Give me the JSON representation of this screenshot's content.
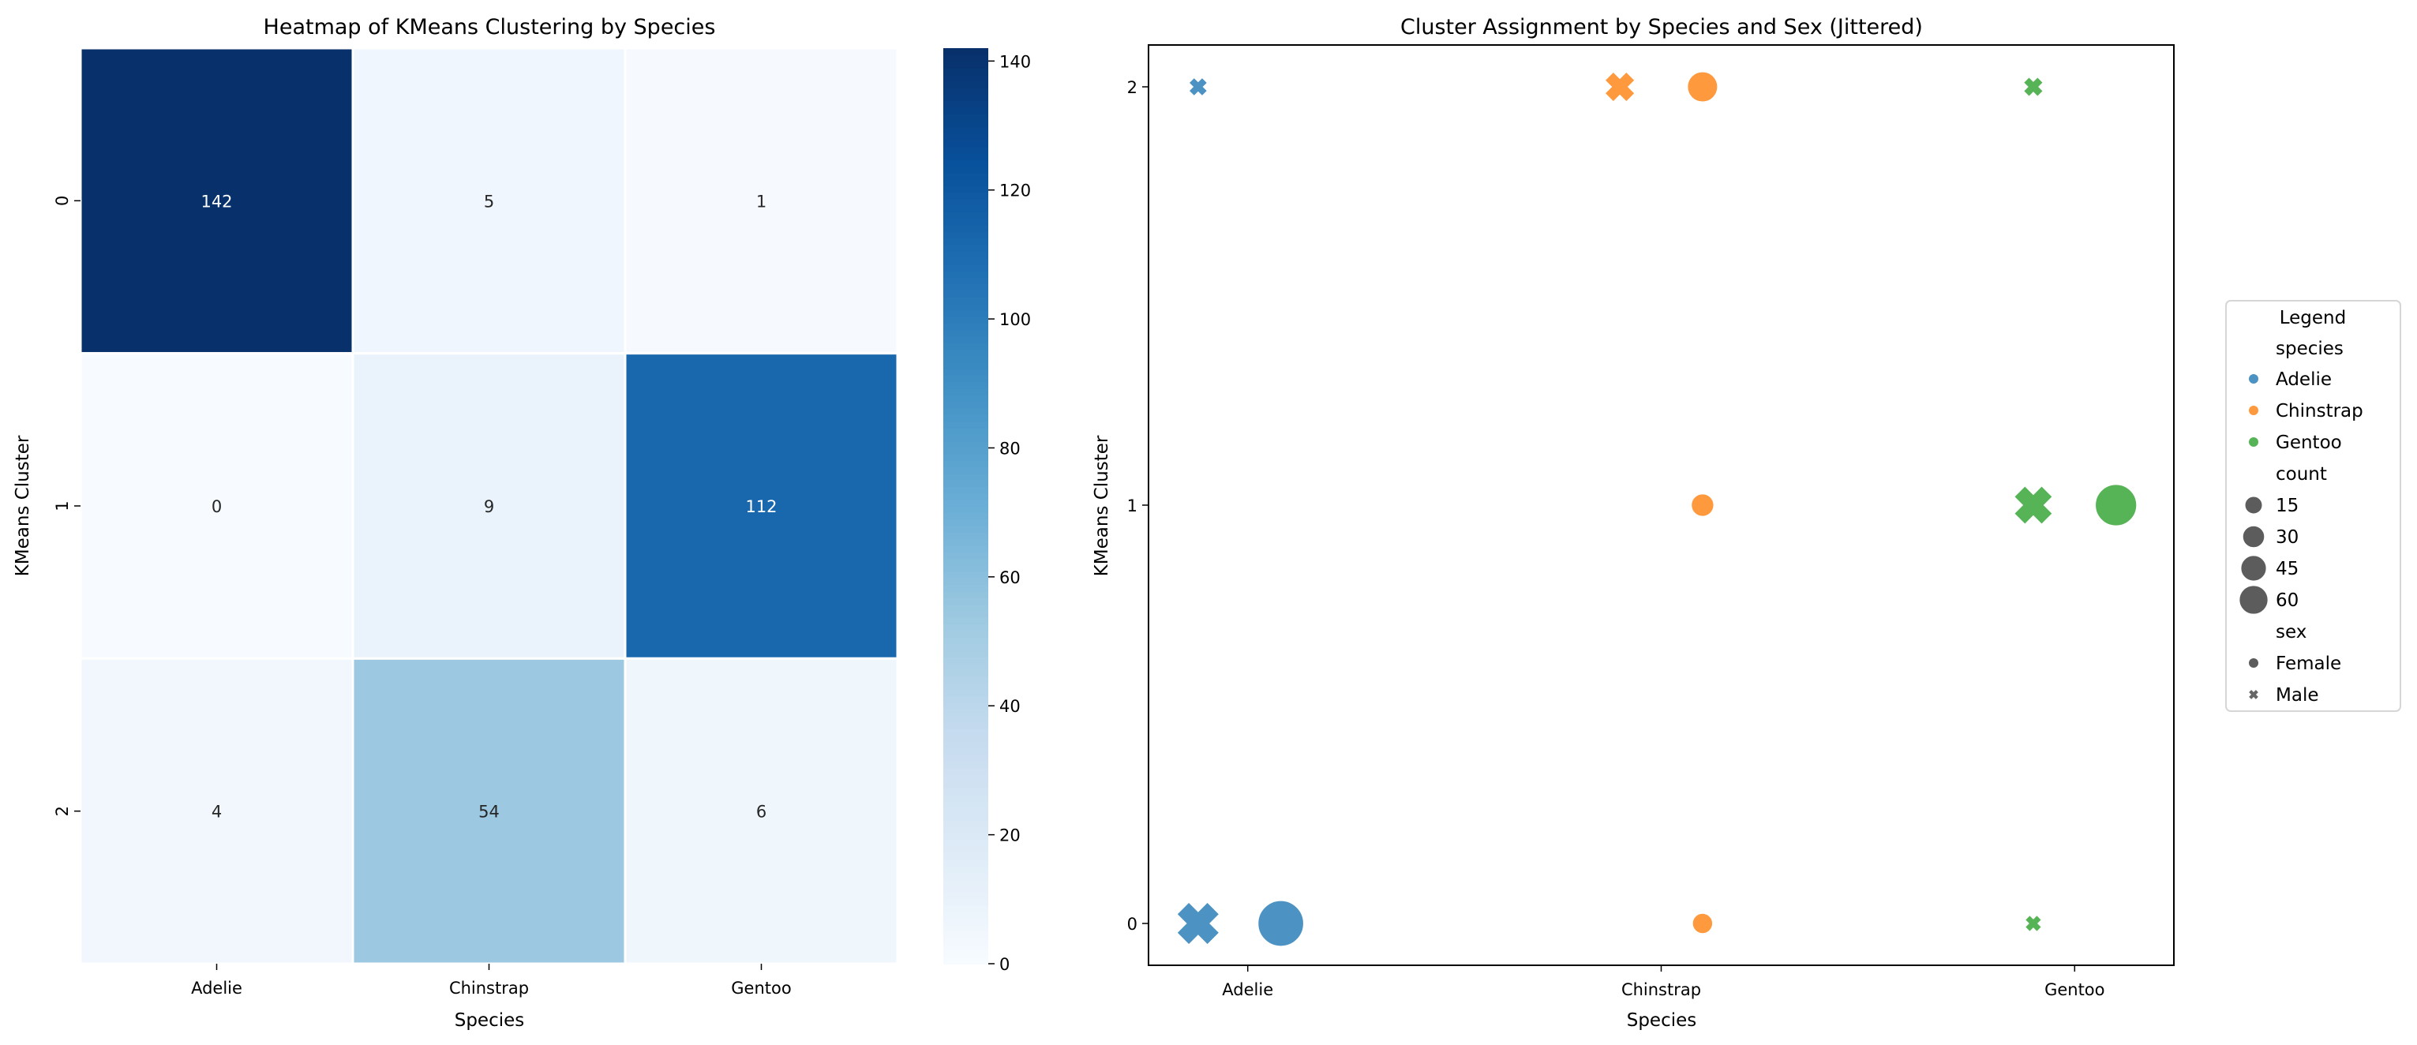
{
  "chart_data": [
    {
      "type": "heatmap",
      "title": "Heatmap of KMeans Clustering by Species",
      "xlabel": "Species",
      "ylabel": "KMeans Cluster",
      "x_categories": [
        "Adelie",
        "Chinstrap",
        "Gentoo"
      ],
      "y_categories": [
        "0",
        "1",
        "2"
      ],
      "values": [
        [
          142,
          5,
          1
        ],
        [
          0,
          9,
          112
        ],
        [
          4,
          54,
          6
        ]
      ],
      "colormap": "Blues",
      "vmin": 0,
      "vmax": 142,
      "colorbar_ticks": [
        "0",
        "20",
        "40",
        "60",
        "80",
        "100",
        "120",
        "140"
      ]
    },
    {
      "type": "scatter",
      "title": "Cluster Assignment by Species and Sex (Jittered)",
      "xlabel": "Species",
      "ylabel": "KMeans Cluster",
      "x_categories": [
        "Adelie",
        "Chinstrap",
        "Gentoo"
      ],
      "y_ticks": [
        "0",
        "1",
        "2"
      ],
      "xlim": [
        -0.24,
        2.24
      ],
      "ylim": [
        -0.1,
        2.1
      ],
      "colors": {
        "Adelie": "#1f77b4",
        "Chinstrap": "#ff7f0e",
        "Gentoo": "#2ca02c"
      },
      "points": [
        {
          "species": "Adelie",
          "sex": "Male",
          "x": -0.12,
          "cluster": 0,
          "count": 70
        },
        {
          "species": "Adelie",
          "sex": "Female",
          "x": 0.08,
          "cluster": 0,
          "count": 72
        },
        {
          "species": "Adelie",
          "sex": "Male",
          "x": -0.12,
          "cluster": 2,
          "count": 4
        },
        {
          "species": "Chinstrap",
          "sex": "Male",
          "x": 0.9,
          "cluster": 2,
          "count": 29
        },
        {
          "species": "Chinstrap",
          "sex": "Female",
          "x": 1.1,
          "cluster": 2,
          "count": 25
        },
        {
          "species": "Chinstrap",
          "sex": "Female",
          "x": 1.1,
          "cluster": 1,
          "count": 9
        },
        {
          "species": "Chinstrap",
          "sex": "Female",
          "x": 1.1,
          "cluster": 0,
          "count": 5
        },
        {
          "species": "Gentoo",
          "sex": "Male",
          "x": 1.9,
          "cluster": 2,
          "count": 6
        },
        {
          "species": "Gentoo",
          "sex": "Male",
          "x": 1.9,
          "cluster": 1,
          "count": 55
        },
        {
          "species": "Gentoo",
          "sex": "Female",
          "x": 2.1,
          "cluster": 1,
          "count": 57
        },
        {
          "species": "Gentoo",
          "sex": "Male",
          "x": 1.9,
          "cluster": 0,
          "count": 1
        }
      ],
      "legend": {
        "title": "Legend",
        "placement": "right",
        "species_header": "species",
        "species": [
          "Adelie",
          "Chinstrap",
          "Gentoo"
        ],
        "count_header": "count",
        "counts": [
          "15",
          "30",
          "45",
          "60"
        ],
        "sex_header": "sex",
        "sexes": [
          "Female",
          "Male"
        ]
      }
    }
  ]
}
